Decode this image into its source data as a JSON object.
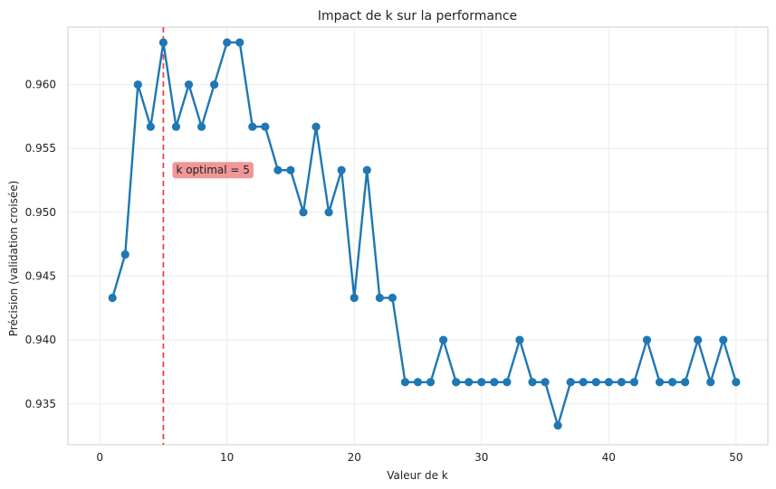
{
  "chart_data": {
    "type": "line",
    "title": "Impact de k sur la performance",
    "xlabel": "Valeur de k",
    "ylabel": "Précision (validation croisée)",
    "xlim": [
      -2.5,
      52.5
    ],
    "ylim": [
      0.9318,
      0.9645
    ],
    "x_ticks": [
      0,
      10,
      20,
      30,
      40,
      50
    ],
    "y_ticks": [
      0.935,
      0.94,
      0.945,
      0.95,
      0.955,
      0.96
    ],
    "x_tick_labels": [
      "0",
      "10",
      "20",
      "30",
      "40",
      "50"
    ],
    "y_tick_labels": [
      "0.935",
      "0.940",
      "0.945",
      "0.950",
      "0.955",
      "0.960"
    ],
    "grid": true,
    "series": [
      {
        "color": "#1f77b4",
        "x": [
          1,
          2,
          3,
          4,
          5,
          6,
          7,
          8,
          9,
          10,
          11,
          12,
          13,
          14,
          15,
          16,
          17,
          18,
          19,
          20,
          21,
          22,
          23,
          24,
          25,
          26,
          27,
          28,
          29,
          30,
          31,
          32,
          33,
          34,
          35,
          36,
          37,
          38,
          39,
          40,
          41,
          42,
          43,
          44,
          45,
          46,
          47,
          48,
          49,
          50
        ],
        "y": [
          0.9433,
          0.9467,
          0.96,
          0.9567,
          0.9633,
          0.9567,
          0.96,
          0.9567,
          0.96,
          0.9633,
          0.9633,
          0.9567,
          0.9567,
          0.9533,
          0.9533,
          0.95,
          0.9567,
          0.95,
          0.9533,
          0.9433,
          0.9533,
          0.9433,
          0.9433,
          0.9367,
          0.9367,
          0.9367,
          0.94,
          0.9367,
          0.9367,
          0.9367,
          0.9367,
          0.9367,
          0.94,
          0.9367,
          0.9367,
          0.9333,
          0.9367,
          0.9367,
          0.9367,
          0.9367,
          0.9367,
          0.9367,
          0.94,
          0.9367,
          0.9367,
          0.9367,
          0.94,
          0.9367,
          0.94,
          0.9367
        ]
      }
    ],
    "vline": {
      "x": 5,
      "color": "#e8232a"
    },
    "annotation": {
      "text": "k optimal = 5",
      "x": 6,
      "y": 0.9533,
      "box_color": "#f08c8c"
    }
  }
}
